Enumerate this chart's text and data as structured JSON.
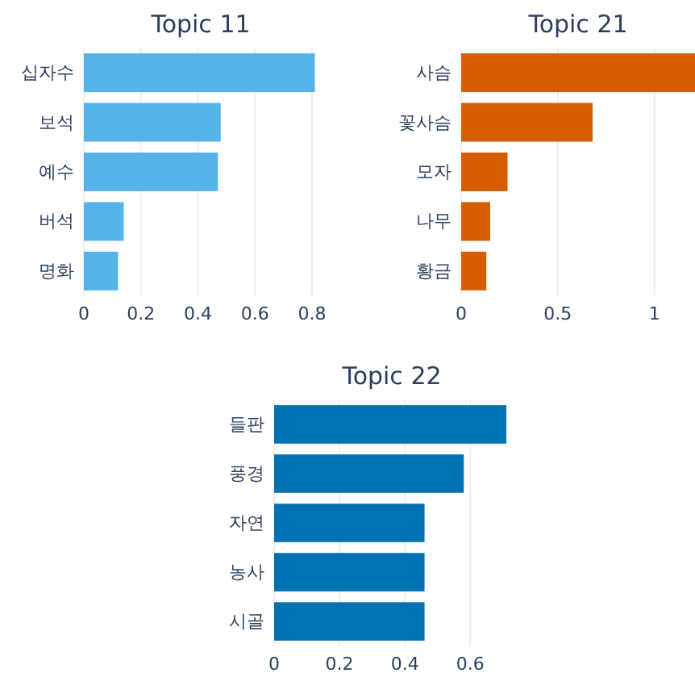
{
  "chart_data": [
    {
      "type": "bar",
      "orientation": "horizontal",
      "title": "Topic 11",
      "categories": [
        "십자수",
        "보석",
        "예수",
        "버석",
        "명화"
      ],
      "values": [
        0.81,
        0.48,
        0.47,
        0.14,
        0.12
      ],
      "color": "#56b4e9",
      "xlim": [
        0,
        0.82
      ],
      "xticks": [
        0,
        0.2,
        0.4,
        0.6,
        0.8
      ],
      "grid": "x"
    },
    {
      "type": "bar",
      "orientation": "horizontal",
      "title": "Topic 21",
      "categories": [
        "사슴",
        "꽃사슴",
        "모자",
        "나무",
        "황금"
      ],
      "values": [
        1.21,
        0.68,
        0.24,
        0.15,
        0.13
      ],
      "color": "#d55e00",
      "xlim": [
        0,
        1.21
      ],
      "xticks": [
        0,
        0.5,
        1
      ],
      "grid": "x"
    },
    {
      "type": "bar",
      "orientation": "horizontal",
      "title": "Topic 22",
      "categories": [
        "들판",
        "풍경",
        "자연",
        "농사",
        "시골"
      ],
      "values": [
        0.71,
        0.58,
        0.46,
        0.46,
        0.46
      ],
      "color": "#0072b2",
      "xlim": [
        0,
        0.72
      ],
      "xticks": [
        0,
        0.2,
        0.4,
        0.6
      ],
      "grid": "x"
    }
  ]
}
